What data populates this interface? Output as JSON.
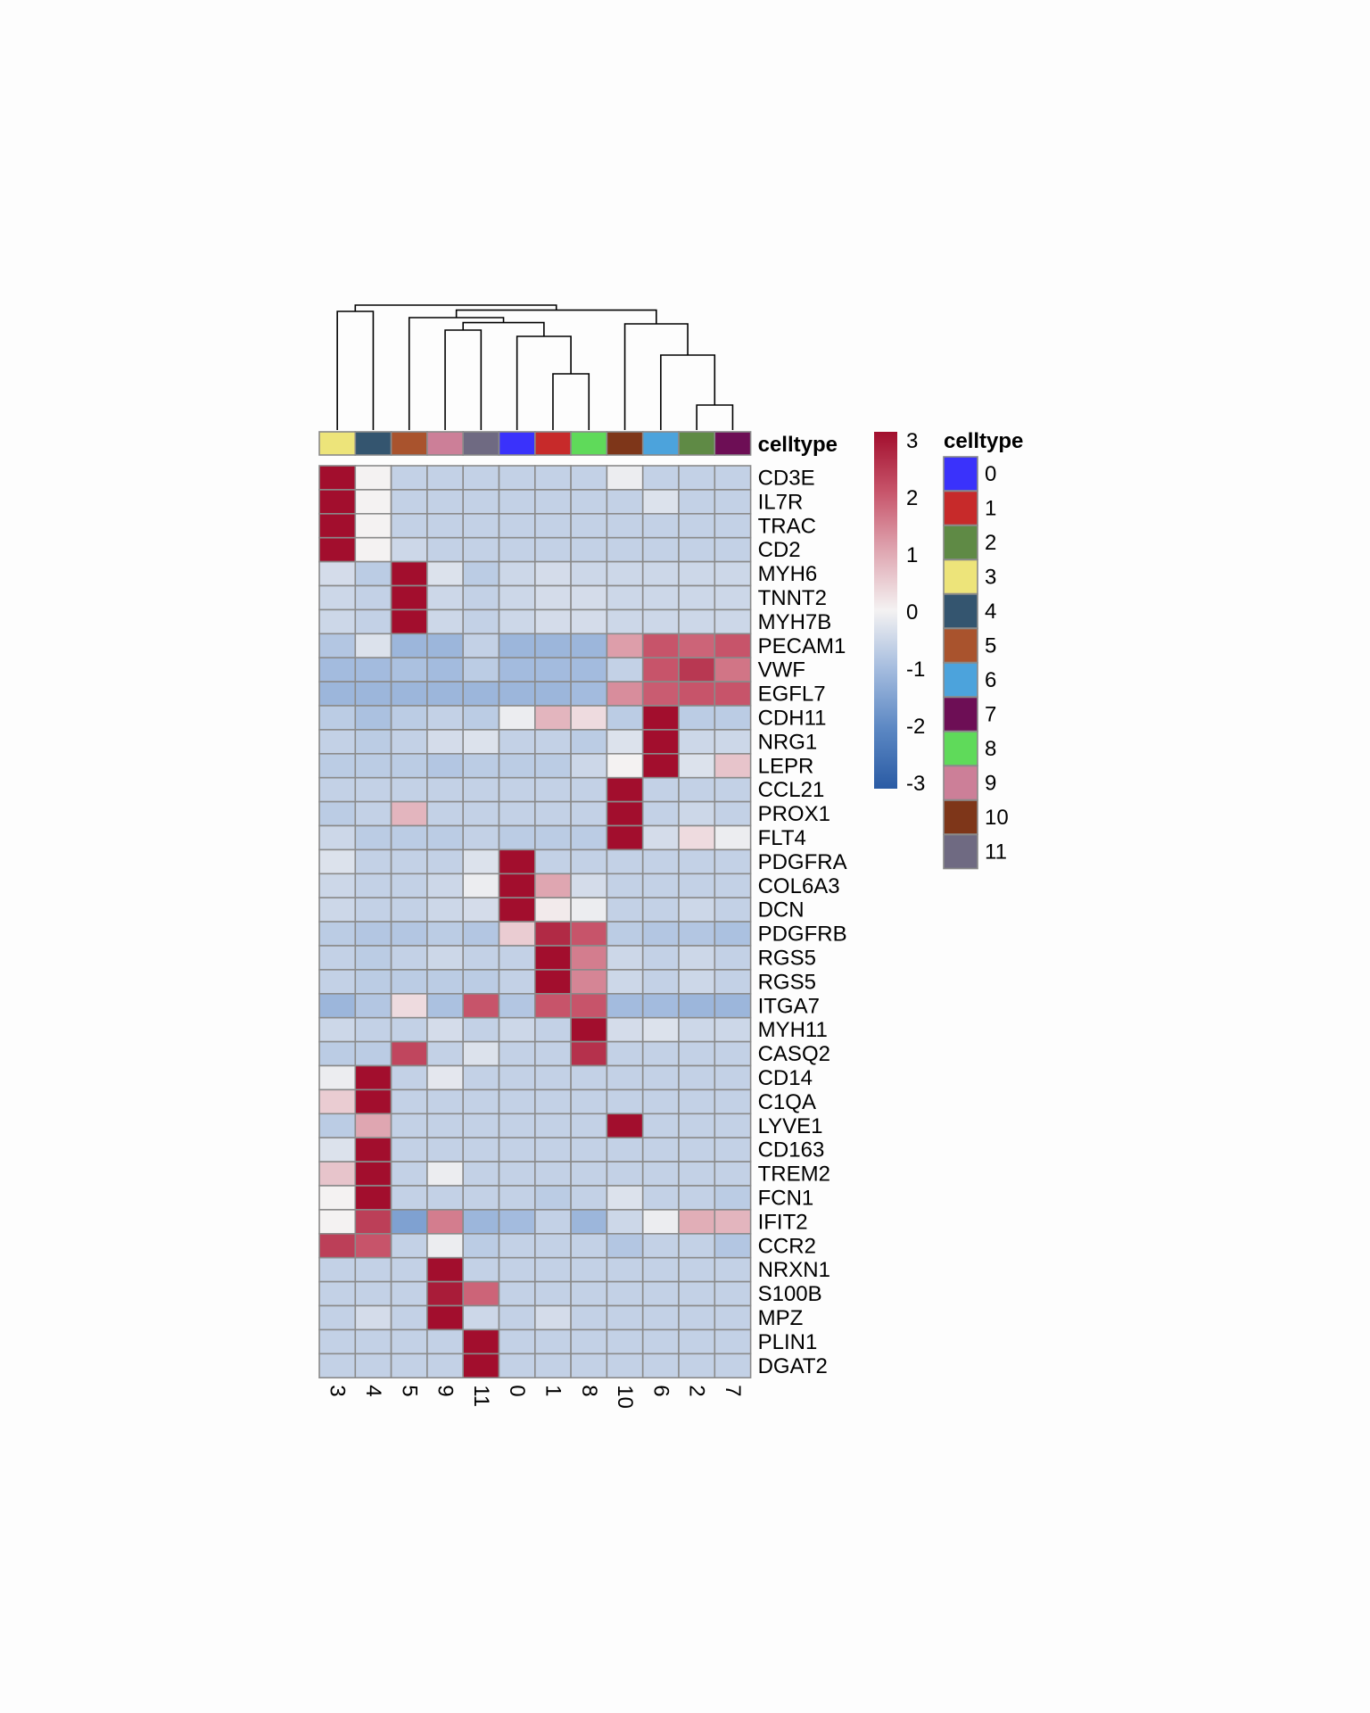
{
  "chart_data": {
    "type": "heatmap",
    "title": "",
    "columns": [
      "3",
      "4",
      "5",
      "9",
      "11",
      "0",
      "1",
      "8",
      "10",
      "6",
      "2",
      "7"
    ],
    "rows": [
      "CD3E",
      "IL7R",
      "TRAC",
      "CD2",
      "MYH6",
      "TNNT2",
      "MYH7B",
      "PECAM1",
      "VWF",
      "EGFL7",
      "CDH11",
      "NRG1",
      "LEPR",
      "CCL21",
      "PROX1",
      "FLT4",
      "PDGFRA",
      "COL6A3",
      "DCN",
      "PDGFRB",
      "RGS5",
      "RGS5",
      "ITGA7",
      "MYH11",
      "CASQ2",
      "CD14",
      "C1QA",
      "LYVE1",
      "CD163",
      "TREM2",
      "FCN1",
      "IFIT2",
      "CCR2",
      "NRXN1",
      "S100B",
      "MPZ",
      "PLIN1",
      "DGAT2"
    ],
    "values": [
      [
        3,
        0,
        -0.6,
        -0.6,
        -0.6,
        -0.6,
        -0.6,
        -0.6,
        -0.1,
        -0.6,
        -0.6,
        -0.6
      ],
      [
        3,
        0,
        -0.6,
        -0.6,
        -0.6,
        -0.6,
        -0.6,
        -0.6,
        -0.6,
        -0.3,
        -0.6,
        -0.6
      ],
      [
        3,
        0,
        -0.6,
        -0.6,
        -0.6,
        -0.6,
        -0.6,
        -0.6,
        -0.6,
        -0.6,
        -0.6,
        -0.6
      ],
      [
        3,
        0,
        -0.5,
        -0.6,
        -0.6,
        -0.6,
        -0.6,
        -0.6,
        -0.6,
        -0.6,
        -0.6,
        -0.6
      ],
      [
        -0.4,
        -0.7,
        3,
        -0.3,
        -0.7,
        -0.5,
        -0.4,
        -0.5,
        -0.5,
        -0.5,
        -0.5,
        -0.5
      ],
      [
        -0.5,
        -0.6,
        3,
        -0.5,
        -0.6,
        -0.5,
        -0.4,
        -0.4,
        -0.5,
        -0.5,
        -0.5,
        -0.5
      ],
      [
        -0.5,
        -0.6,
        3,
        -0.5,
        -0.6,
        -0.5,
        -0.4,
        -0.4,
        -0.5,
        -0.5,
        -0.5,
        -0.5
      ],
      [
        -0.8,
        -0.3,
        -1.1,
        -1.1,
        -0.6,
        -1.1,
        -1.1,
        -1.1,
        1.1,
        2.0,
        1.8,
        2.0
      ],
      [
        -1.0,
        -1.0,
        -0.9,
        -1.0,
        -0.7,
        -1.0,
        -1.0,
        -1.0,
        -0.6,
        2.0,
        2.4,
        1.6
      ],
      [
        -1.1,
        -1.1,
        -1.1,
        -1.1,
        -1.1,
        -1.1,
        -1.1,
        -1.0,
        1.3,
        1.9,
        2.0,
        2.0
      ],
      [
        -0.7,
        -0.9,
        -0.7,
        -0.6,
        -0.7,
        -0.1,
        0.8,
        0.3,
        -0.7,
        3,
        -0.7,
        -0.7
      ],
      [
        -0.6,
        -0.7,
        -0.6,
        -0.4,
        -0.3,
        -0.6,
        -0.6,
        -0.7,
        -0.3,
        3,
        -0.5,
        -0.5
      ],
      [
        -0.7,
        -0.7,
        -0.7,
        -0.8,
        -0.7,
        -0.7,
        -0.7,
        -0.5,
        0,
        3,
        -0.3,
        0.6
      ],
      [
        -0.6,
        -0.6,
        -0.6,
        -0.6,
        -0.6,
        -0.6,
        -0.6,
        -0.6,
        3,
        -0.6,
        -0.6,
        -0.6
      ],
      [
        -0.7,
        -0.6,
        0.8,
        -0.6,
        -0.6,
        -0.6,
        -0.6,
        -0.6,
        3,
        -0.6,
        -0.5,
        -0.6
      ],
      [
        -0.5,
        -0.7,
        -0.7,
        -0.7,
        -0.6,
        -0.7,
        -0.7,
        -0.7,
        3,
        -0.4,
        0.3,
        -0.1
      ],
      [
        -0.3,
        -0.6,
        -0.6,
        -0.6,
        -0.3,
        3,
        -0.6,
        -0.6,
        -0.6,
        -0.6,
        -0.6,
        -0.6
      ],
      [
        -0.5,
        -0.6,
        -0.6,
        -0.5,
        -0.1,
        3,
        1.0,
        -0.4,
        -0.6,
        -0.6,
        -0.6,
        -0.6
      ],
      [
        -0.5,
        -0.6,
        -0.6,
        -0.5,
        -0.4,
        3,
        0.1,
        -0.1,
        -0.6,
        -0.6,
        -0.5,
        -0.6
      ],
      [
        -0.7,
        -0.8,
        -0.8,
        -0.7,
        -0.8,
        0.5,
        2.6,
        2.0,
        -0.7,
        -0.8,
        -0.8,
        -0.9
      ],
      [
        -0.6,
        -0.7,
        -0.6,
        -0.5,
        -0.6,
        -0.6,
        3,
        1.5,
        -0.5,
        -0.6,
        -0.5,
        -0.6
      ],
      [
        -0.6,
        -0.7,
        -0.7,
        -0.7,
        -0.7,
        -0.6,
        3,
        1.4,
        -0.5,
        -0.6,
        -0.5,
        -0.6
      ],
      [
        -1.1,
        -0.8,
        0.3,
        -0.9,
        2.0,
        -0.8,
        2.0,
        2.0,
        -1.0,
        -1.0,
        -1.1,
        -1.1
      ],
      [
        -0.5,
        -0.6,
        -0.6,
        -0.4,
        -0.6,
        -0.5,
        -0.6,
        3,
        -0.4,
        -0.3,
        -0.5,
        -0.5
      ],
      [
        -0.7,
        -0.7,
        2.2,
        -0.6,
        -0.3,
        -0.6,
        -0.6,
        2.5,
        -0.6,
        -0.6,
        -0.6,
        -0.6
      ],
      [
        -0.1,
        3,
        -0.6,
        -0.2,
        -0.6,
        -0.6,
        -0.6,
        -0.6,
        -0.6,
        -0.6,
        -0.6,
        -0.6
      ],
      [
        0.5,
        3,
        -0.6,
        -0.6,
        -0.6,
        -0.6,
        -0.6,
        -0.6,
        -0.6,
        -0.6,
        -0.6,
        -0.6
      ],
      [
        -0.7,
        1.0,
        -0.6,
        -0.6,
        -0.6,
        -0.6,
        -0.6,
        -0.6,
        3,
        -0.6,
        -0.6,
        -0.6
      ],
      [
        -0.3,
        3,
        -0.6,
        -0.6,
        -0.6,
        -0.6,
        -0.6,
        -0.6,
        -0.6,
        -0.6,
        -0.6,
        -0.6
      ],
      [
        0.6,
        3,
        -0.6,
        -0.1,
        -0.6,
        -0.6,
        -0.6,
        -0.6,
        -0.6,
        -0.6,
        -0.6,
        -0.6
      ],
      [
        0,
        3,
        -0.6,
        -0.6,
        -0.6,
        -0.6,
        -0.7,
        -0.6,
        -0.3,
        -0.6,
        -0.6,
        -0.7
      ],
      [
        0,
        2.3,
        -1.5,
        1.5,
        -1.1,
        -1.0,
        -0.6,
        -1.1,
        -0.5,
        -0.1,
        0.9,
        0.8
      ],
      [
        2.3,
        2.0,
        -0.6,
        -0.1,
        -0.7,
        -0.6,
        -0.6,
        -0.6,
        -0.8,
        -0.6,
        -0.6,
        -0.8
      ],
      [
        -0.6,
        -0.6,
        -0.6,
        3,
        -0.6,
        -0.6,
        -0.6,
        -0.6,
        -0.6,
        -0.6,
        -0.6,
        -0.6
      ],
      [
        -0.6,
        -0.6,
        -0.6,
        2.8,
        1.8,
        -0.6,
        -0.6,
        -0.6,
        -0.6,
        -0.6,
        -0.6,
        -0.6
      ],
      [
        -0.6,
        -0.4,
        -0.6,
        3,
        -0.5,
        -0.6,
        -0.4,
        -0.6,
        -0.6,
        -0.6,
        -0.6,
        -0.6
      ],
      [
        -0.6,
        -0.6,
        -0.6,
        -0.6,
        3,
        -0.6,
        -0.6,
        -0.6,
        -0.6,
        -0.6,
        -0.6,
        -0.6
      ],
      [
        -0.6,
        -0.6,
        -0.6,
        -0.6,
        3,
        -0.6,
        -0.6,
        -0.6,
        -0.6,
        -0.6,
        -0.6,
        -0.6
      ]
    ],
    "color_scale": {
      "min": -3,
      "max": 3,
      "stops": [
        "#2a5ba4",
        "#5b87c3",
        "#a3bbde",
        "#f4f2f2",
        "#dfa6b1",
        "#c7546a",
        "#a20e2d"
      ],
      "ticks": [
        "3",
        "2",
        "1",
        "0",
        "-1",
        "-2",
        "-3"
      ]
    },
    "annotation": {
      "label": "celltype",
      "legend_title": "celltype",
      "levels": [
        "0",
        "1",
        "2",
        "3",
        "4",
        "5",
        "6",
        "7",
        "8",
        "9",
        "10",
        "11"
      ],
      "colors": {
        "0": "#3a32fb",
        "1": "#c72a2a",
        "2": "#5f8a45",
        "3": "#ede47a",
        "4": "#34556f",
        "5": "#a9532d",
        "6": "#4ca3dc",
        "7": "#6d0e55",
        "8": "#5fda5a",
        "9": "#cc7f98",
        "10": "#7e3619",
        "11": "#6f6a82"
      }
    },
    "dendrogram": {
      "leaf_order": [
        "3",
        "4",
        "5",
        "9",
        "11",
        "0",
        "1",
        "8",
        "10",
        "6",
        "2",
        "7"
      ],
      "merges": [
        [
          [
            "2",
            "7"
          ],
          0.2
        ],
        [
          [
            "1",
            "8"
          ],
          0.45
        ],
        [
          [
            "6",
            "2+7"
          ],
          0.6
        ],
        [
          [
            "0",
            "1+8"
          ],
          0.75
        ],
        [
          [
            "9",
            "11"
          ],
          0.8
        ],
        [
          [
            "10",
            "6+2+7"
          ],
          0.85
        ],
        [
          [
            "9+11",
            "0+1+8"
          ],
          0.86
        ],
        [
          [
            "5",
            "9+11+0+1+8"
          ],
          0.9
        ],
        [
          [
            "5+9+11+0+1+8",
            "10+6+2+7"
          ],
          0.96
        ],
        [
          [
            "3",
            "4"
          ],
          0.95
        ],
        [
          [
            "3+4",
            "rest"
          ],
          1.0
        ]
      ]
    }
  }
}
